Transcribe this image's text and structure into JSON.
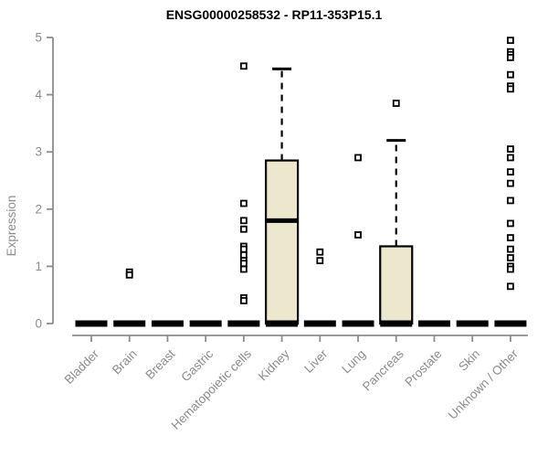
{
  "chart_data": {
    "type": "boxplot",
    "title": "ENSG00000258532 - RP11-353P15.1",
    "xlabel": "",
    "ylabel": "Expression",
    "ylim": [
      0,
      5
    ],
    "yticks": [
      0,
      1,
      2,
      3,
      4,
      5
    ],
    "grid": false,
    "legend": false,
    "categories": [
      "Bladder",
      "Brain",
      "Breast",
      "Gastric",
      "Hematopoietic cells",
      "Kidney",
      "Liver",
      "Lung",
      "Pancreas",
      "Prostate",
      "Skin",
      "Unknown / Other"
    ],
    "boxes": [
      {
        "category": "Bladder",
        "whisker_low": 0,
        "q1": 0,
        "median": 0,
        "q3": 0,
        "whisker_high": 0,
        "outliers": []
      },
      {
        "category": "Brain",
        "whisker_low": 0,
        "q1": 0,
        "median": 0,
        "q3": 0,
        "whisker_high": 0,
        "outliers": [
          0.9,
          0.85
        ]
      },
      {
        "category": "Breast",
        "whisker_low": 0,
        "q1": 0,
        "median": 0,
        "q3": 0,
        "whisker_high": 0,
        "outliers": []
      },
      {
        "category": "Gastric",
        "whisker_low": 0,
        "q1": 0,
        "median": 0,
        "q3": 0,
        "whisker_high": 0,
        "outliers": []
      },
      {
        "category": "Hematopoietic cells",
        "whisker_low": 0,
        "q1": 0,
        "median": 0,
        "q3": 0,
        "whisker_high": 0,
        "outliers": [
          4.5,
          2.1,
          1.8,
          1.65,
          1.35,
          1.3,
          1.2,
          1.1,
          1.05,
          0.95,
          0.45,
          0.4
        ]
      },
      {
        "category": "Kidney",
        "whisker_low": 0,
        "q1": 0,
        "median": 1.8,
        "q3": 2.85,
        "whisker_high": 4.45,
        "outliers": []
      },
      {
        "category": "Liver",
        "whisker_low": 0,
        "q1": 0,
        "median": 0,
        "q3": 0,
        "whisker_high": 0,
        "outliers": [
          1.25,
          1.1
        ]
      },
      {
        "category": "Lung",
        "whisker_low": 0,
        "q1": 0,
        "median": 0,
        "q3": 0,
        "whisker_high": 0,
        "outliers": [
          2.9,
          1.55
        ]
      },
      {
        "category": "Pancreas",
        "whisker_low": 0,
        "q1": 0,
        "median": 0,
        "q3": 1.35,
        "whisker_high": 3.2,
        "outliers": [
          3.85
        ]
      },
      {
        "category": "Prostate",
        "whisker_low": 0,
        "q1": 0,
        "median": 0,
        "q3": 0,
        "whisker_high": 0,
        "outliers": []
      },
      {
        "category": "Skin",
        "whisker_low": 0,
        "q1": 0,
        "median": 0,
        "q3": 0,
        "whisker_high": 0,
        "outliers": []
      },
      {
        "category": "Unknown / Other",
        "whisker_low": 0,
        "q1": 0,
        "median": 0,
        "q3": 0,
        "whisker_high": 0,
        "outliers": [
          4.95,
          4.75,
          4.7,
          4.65,
          4.35,
          4.15,
          4.1,
          3.05,
          2.9,
          2.65,
          2.45,
          2.15,
          1.75,
          1.5,
          1.3,
          1.15,
          1.0,
          0.95,
          0.65
        ]
      }
    ],
    "colors": {
      "box_fill": "#EDE7CD",
      "box_stroke": "#000000",
      "median": "#000000",
      "whisker": "#000000",
      "outlier_stroke": "#000000",
      "outlier_fill": "#FFFFFF",
      "axis": "#8C8C8C",
      "tick_label": "#8C8C8C",
      "title": "#000000",
      "background": "#FFFFFF"
    }
  }
}
